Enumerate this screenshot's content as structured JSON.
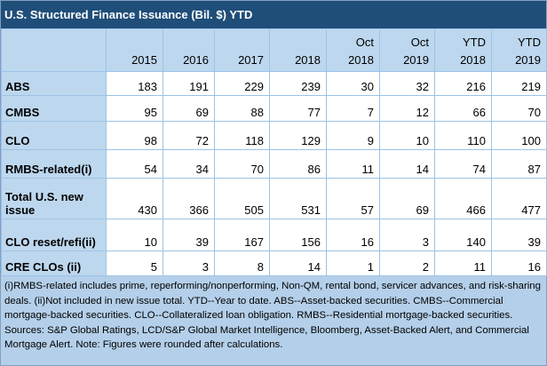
{
  "title": "U.S. Structured Finance Issuance (Bil. $) YTD",
  "table": {
    "header": [
      "2015",
      "2016",
      "2017",
      "2018",
      "Oct 2018",
      "Oct 2019",
      "YTD 2018",
      "YTD 2019"
    ],
    "rows": [
      {
        "label": "ABS",
        "values": [
          183,
          191,
          229,
          239,
          30,
          32,
          216,
          219
        ]
      },
      {
        "label": "CMBS",
        "values": [
          95,
          69,
          88,
          77,
          7,
          12,
          66,
          70
        ]
      },
      {
        "label": "CLO",
        "values": [
          98,
          72,
          118,
          129,
          9,
          10,
          110,
          100
        ]
      },
      {
        "label": "RMBS-related(i)",
        "values": [
          54,
          34,
          70,
          86,
          11,
          14,
          74,
          87
        ]
      },
      {
        "label": "Total U.S. new issue",
        "values": [
          430,
          366,
          505,
          531,
          57,
          69,
          466,
          477
        ]
      },
      {
        "label": "CLO reset/refi(ii)",
        "values": [
          10,
          39,
          167,
          156,
          16,
          3,
          140,
          39
        ]
      },
      {
        "label": "CRE CLOs (ii)",
        "values": [
          5,
          3,
          8,
          14,
          1,
          2,
          11,
          16
        ]
      }
    ]
  },
  "footnote": "(i)RMBS-related includes prime, reperforming/nonperforming, Non-QM, rental bond, servicer advances, and risk-sharing deals. (ii)Not included in new issue total. YTD--Year to date. ABS--Asset-backed securities. CMBS--Commercial mortgage-backed securities. CLO--Collateralized loan obligation. RMBS--Residential mortgage-backed securities. Sources: S&P Global Ratings, LCD/S&P Global Market Intelligence, Bloomberg, Asset-Backed Alert, and Commercial Mortgage Alert. Note: Figures were rounded after calculations."
}
